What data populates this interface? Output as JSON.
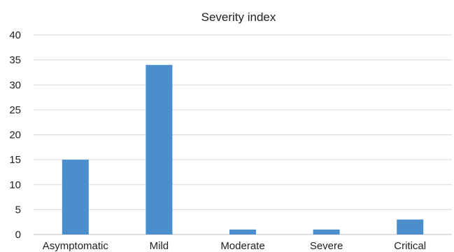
{
  "chart_data": {
    "type": "bar",
    "title": "Severity index",
    "categories": [
      "Asymptomatic",
      "Mild",
      "Moderate",
      "Severe",
      "Critical"
    ],
    "values": [
      15,
      34,
      1,
      1,
      3
    ],
    "ylim": [
      0,
      40
    ],
    "yticks": [
      0,
      5,
      10,
      15,
      20,
      25,
      30,
      35,
      40
    ],
    "xlabel": "",
    "ylabel": "",
    "grid": true,
    "legend": "none",
    "colors": {
      "bar": "#4a8fcc",
      "grid": "#d9d9d9",
      "axis": "#bfbfbf"
    }
  }
}
